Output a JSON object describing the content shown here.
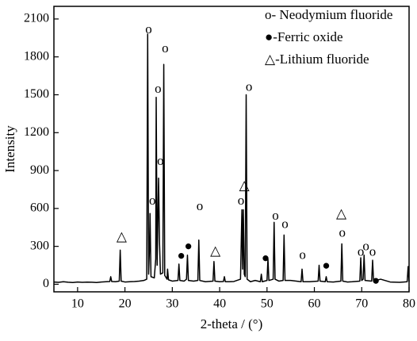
{
  "chart_data": {
    "type": "line",
    "color": "#000000",
    "xlabel": "2-theta / (°)",
    "ylabel": "Intensity",
    "xlim": [
      5,
      80
    ],
    "ylim": [
      -60,
      2200
    ],
    "xticks": [
      10,
      20,
      30,
      40,
      50,
      60,
      70,
      80
    ],
    "yticks": [
      0,
      300,
      600,
      900,
      1200,
      1500,
      1800,
      2100
    ],
    "x": [
      5,
      6,
      7,
      8,
      9,
      10,
      11,
      12,
      13,
      14,
      15,
      16,
      16.8,
      17,
      17.2,
      18,
      18.8,
      19,
      19.2,
      20,
      21,
      22,
      23,
      24,
      24.6,
      24.8,
      25.0,
      25.2,
      25.3,
      25.5,
      26.2,
      26.5,
      26.6,
      26.8,
      27.1,
      27.3,
      27.5,
      28.0,
      28.2,
      28.4,
      28.9,
      29.0,
      29.2,
      30,
      31.2,
      31.4,
      31.6,
      32.5,
      33.0,
      33.2,
      33.4,
      34.5,
      35.4,
      35.6,
      35.8,
      37,
      38.6,
      38.8,
      39.0,
      40,
      40.8,
      41,
      41.2,
      42,
      43,
      44.4,
      44.7,
      44.85,
      45.0,
      45.2,
      45.4,
      45.6,
      45.8,
      46.5,
      47.5,
      48.6,
      48.8,
      49.0,
      50.0,
      50.2,
      50.4,
      51.3,
      51.5,
      51.7,
      52.5,
      53.4,
      53.6,
      53.8,
      55,
      57.2,
      57.4,
      57.6,
      59,
      60.8,
      61,
      61.2,
      62.3,
      62.5,
      62.7,
      64,
      65.6,
      65.8,
      66.0,
      67,
      68,
      69.6,
      69.8,
      70.0,
      70.3,
      70.5,
      70.7,
      72.1,
      72.3,
      72.5,
      74,
      76,
      78,
      79.6,
      79.8,
      80
    ],
    "values": [
      18,
      15,
      20,
      16,
      14,
      18,
      15,
      17,
      16,
      14,
      18,
      20,
      22,
      60,
      22,
      20,
      25,
      270,
      25,
      18,
      20,
      22,
      25,
      30,
      40,
      1980,
      80,
      300,
      560,
      60,
      50,
      200,
      1480,
      150,
      840,
      330,
      80,
      90,
      1740,
      70,
      40,
      120,
      35,
      25,
      30,
      160,
      30,
      25,
      40,
      230,
      30,
      25,
      30,
      350,
      30,
      20,
      25,
      180,
      25,
      20,
      22,
      60,
      20,
      20,
      22,
      40,
      590,
      120,
      590,
      80,
      60,
      1500,
      40,
      20,
      30,
      20,
      80,
      20,
      30,
      200,
      30,
      40,
      490,
      40,
      25,
      30,
      390,
      30,
      30,
      20,
      120,
      20,
      20,
      25,
      150,
      25,
      20,
      60,
      20,
      18,
      25,
      320,
      25,
      18,
      20,
      25,
      210,
      30,
      40,
      230,
      30,
      25,
      190,
      25,
      40,
      18,
      15,
      20,
      140,
      20
    ],
    "annotations": [
      {
        "text": "△",
        "x": 19.3,
        "y": 370
      },
      {
        "text": "o",
        "x": 25.0,
        "y": 2010
      },
      {
        "text": "o",
        "x": 25.8,
        "y": 655
      },
      {
        "text": "o",
        "x": 27.0,
        "y": 1540
      },
      {
        "text": "o",
        "x": 27.5,
        "y": 970
      },
      {
        "text": "o",
        "x": 28.5,
        "y": 1860
      },
      {
        "text": "●",
        "x": 31.9,
        "y": 220
      },
      {
        "text": "●",
        "x": 33.4,
        "y": 295
      },
      {
        "text": "o",
        "x": 35.8,
        "y": 610
      },
      {
        "text": "△",
        "x": 39.1,
        "y": 258
      },
      {
        "text": "o",
        "x": 44.5,
        "y": 655
      },
      {
        "text": "△",
        "x": 45.2,
        "y": 775
      },
      {
        "text": "o",
        "x": 46.2,
        "y": 1555
      },
      {
        "text": "●",
        "x": 49.7,
        "y": 200
      },
      {
        "text": "o",
        "x": 51.8,
        "y": 535
      },
      {
        "text": "o",
        "x": 53.8,
        "y": 470
      },
      {
        "text": "o",
        "x": 57.5,
        "y": 225
      },
      {
        "text": "●",
        "x": 62.5,
        "y": 140
      },
      {
        "text": "△",
        "x": 65.7,
        "y": 550
      },
      {
        "text": "o",
        "x": 65.9,
        "y": 400
      },
      {
        "text": "o",
        "x": 69.8,
        "y": 250
      },
      {
        "text": "o",
        "x": 70.9,
        "y": 295
      },
      {
        "text": "o",
        "x": 72.3,
        "y": 250
      },
      {
        "text": "●",
        "x": 73.0,
        "y": 20
      }
    ],
    "legend_items": [
      "o- Neodymium fluoride",
      "●-Ferric oxide",
      "△-Lithium fluoride"
    ]
  }
}
